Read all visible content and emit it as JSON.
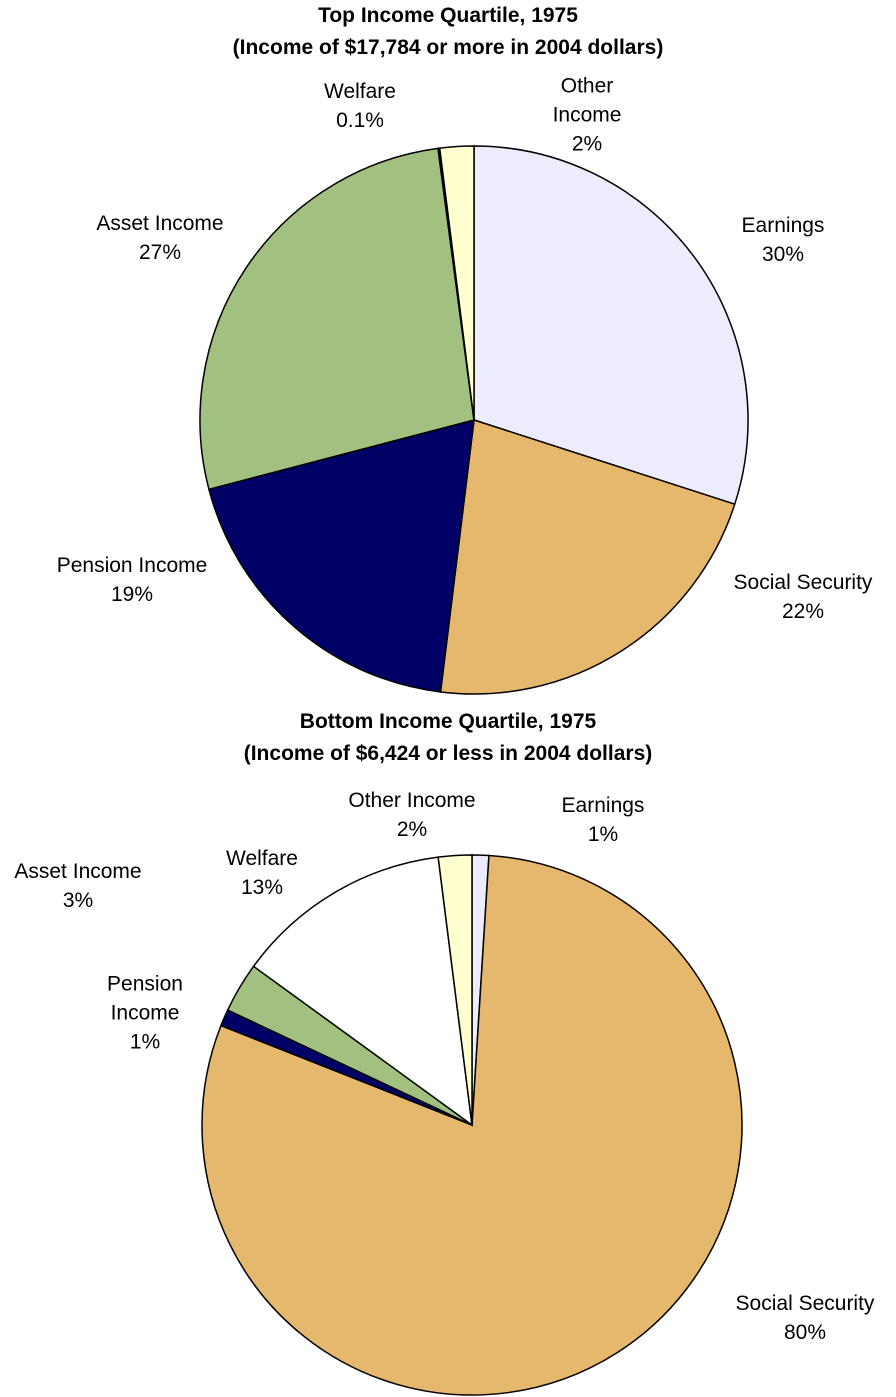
{
  "chart_data": [
    {
      "type": "pie",
      "title": "Top Income Quartile, 1975",
      "subtitle": "(Income of $17,784 or more in 2004 dollars)",
      "categories": [
        "Earnings",
        "Social Security",
        "Pension Income",
        "Asset Income",
        "Welfare",
        "Other Income"
      ],
      "values": [
        30,
        22,
        19,
        27,
        0.1,
        2
      ],
      "value_labels": [
        "30%",
        "22%",
        "19%",
        "27%",
        "0.1%",
        "2%"
      ],
      "colors": [
        "#ececfc",
        "#e6b86e",
        "#000066",
        "#a2c080",
        "#111111",
        "#ffffd0"
      ]
    },
    {
      "type": "pie",
      "title": "Bottom Income Quartile, 1975",
      "subtitle": "(Income of $6,424 or less in 2004 dollars)",
      "categories": [
        "Earnings",
        "Social Security",
        "Pension Income",
        "Asset Income",
        "Welfare",
        "Other Income"
      ],
      "values": [
        1,
        80,
        1,
        3,
        13,
        2
      ],
      "value_labels": [
        "1%",
        "80%",
        "1%",
        "3%",
        "13%",
        "2%"
      ],
      "colors": [
        "#ececfc",
        "#e6b86e",
        "#000066",
        "#a2c080",
        "#ffffff",
        "#ffffd0"
      ]
    }
  ]
}
